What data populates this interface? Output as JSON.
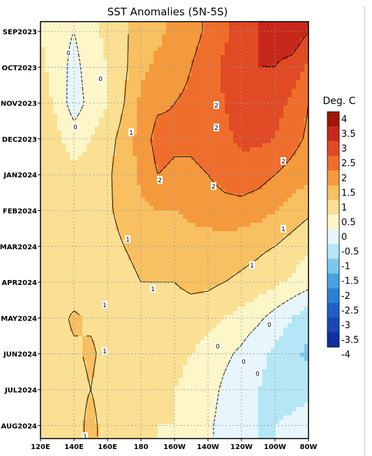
{
  "chart_data": {
    "type": "heatmap",
    "title": "SST Anomalies (5N-5S)",
    "xlabel": "",
    "ylabel": "",
    "x_ticks": [
      "120E",
      "140E",
      "160E",
      "180",
      "160W",
      "140W",
      "120W",
      "100W",
      "80W"
    ],
    "x_values": [
      120,
      140,
      160,
      180,
      200,
      220,
      240,
      260,
      280
    ],
    "xlim": [
      120,
      280
    ],
    "y_ticks": [
      "SEP2023",
      "OCT2023",
      "NOV2023",
      "DEC2023",
      "JAN2024",
      "FEB2024",
      "MAR2024",
      "APR2024",
      "MAY2024",
      "JUN2024",
      "JUL2024",
      "AUG2024"
    ],
    "grid": true,
    "colorbar": {
      "unit": "Deg. C",
      "labels": [
        "4",
        "3.5",
        "3",
        "2.5",
        "2",
        "1.5",
        "1",
        "0.5",
        "0",
        "-0.5",
        "-1",
        "-1.5",
        "-2",
        "-2.5",
        "-3",
        "-3.5",
        "-4"
      ],
      "colors": [
        "#a0140c",
        "#c8281a",
        "#e04a24",
        "#f06e2c",
        "#f59a3c",
        "#f8c060",
        "#fbe094",
        "#fdf6c8",
        "#e6f6fc",
        "#b4e6f6",
        "#7cc8ec",
        "#4aa2e0",
        "#2e80d4",
        "#2060c4",
        "#1848b0",
        "#1030a0"
      ]
    },
    "contour_labels": [
      "0",
      "0",
      "0",
      "1",
      "2",
      "2",
      "2",
      "2",
      "2",
      "1",
      "1",
      "1",
      "1",
      "1",
      "1",
      "1",
      "0",
      "0",
      "0",
      "0"
    ],
    "months": [
      "SEP2023",
      "OCT2023",
      "NOV2023",
      "DEC2023",
      "JAN2024",
      "FEB2024",
      "MAR2024",
      "APR2024",
      "MAY2024",
      "JUN2024",
      "JUL2024",
      "AUG2024"
    ],
    "longitudes": [
      120,
      130,
      140,
      150,
      160,
      170,
      180,
      190,
      200,
      210,
      220,
      230,
      240,
      250,
      260,
      270,
      280
    ],
    "values": [
      [
        0.5,
        0.2,
        0.0,
        0.4,
        0.6,
        0.9,
        1.3,
        1.4,
        1.6,
        1.8,
        2.1,
        2.4,
        2.7,
        3.0,
        3.2,
        3.4,
        3.0
      ],
      [
        0.6,
        0.3,
        -0.2,
        0.3,
        0.5,
        0.9,
        1.4,
        1.6,
        1.8,
        2.0,
        2.3,
        2.6,
        2.9,
        3.0,
        3.0,
        2.8,
        2.4
      ],
      [
        0.7,
        0.4,
        -0.3,
        0.2,
        0.5,
        1.0,
        1.6,
        1.9,
        2.0,
        2.1,
        2.3,
        2.5,
        2.8,
        2.8,
        2.7,
        2.4,
        2.0
      ],
      [
        0.8,
        0.6,
        0.3,
        0.5,
        0.8,
        1.2,
        1.7,
        2.2,
        2.1,
        2.1,
        2.2,
        2.4,
        2.6,
        2.6,
        2.5,
        2.2,
        1.9
      ],
      [
        0.8,
        0.7,
        0.6,
        0.7,
        0.9,
        1.3,
        1.6,
        2.0,
        1.9,
        1.9,
        2.0,
        2.2,
        2.3,
        2.2,
        2.0,
        1.8,
        1.6
      ],
      [
        0.8,
        0.7,
        0.6,
        0.7,
        0.9,
        1.2,
        1.4,
        1.5,
        1.5,
        1.6,
        1.7,
        1.8,
        1.8,
        1.7,
        1.5,
        1.3,
        1.1
      ],
      [
        0.8,
        0.7,
        0.6,
        0.7,
        0.8,
        1.0,
        1.1,
        1.2,
        1.2,
        1.3,
        1.3,
        1.3,
        1.2,
        1.1,
        1.0,
        0.8,
        0.6
      ],
      [
        0.7,
        0.7,
        0.6,
        0.7,
        0.8,
        0.9,
        1.0,
        1.0,
        1.0,
        1.1,
        1.1,
        1.0,
        0.9,
        0.8,
        0.6,
        0.4,
        0.2
      ],
      [
        0.7,
        0.8,
        1.1,
        0.9,
        0.8,
        0.8,
        0.8,
        0.8,
        0.8,
        0.8,
        0.7,
        0.5,
        0.3,
        0.1,
        -0.2,
        -0.5,
        -0.8
      ],
      [
        0.7,
        0.8,
        0.9,
        1.1,
        0.8,
        0.7,
        0.7,
        0.7,
        0.6,
        0.5,
        0.3,
        0.1,
        -0.1,
        -0.4,
        -0.6,
        -0.9,
        -1.1
      ],
      [
        0.6,
        0.7,
        0.8,
        1.0,
        0.7,
        0.6,
        0.6,
        0.6,
        0.5,
        0.4,
        0.2,
        -0.1,
        -0.3,
        -0.5,
        -0.6,
        -0.7,
        -0.6
      ],
      [
        0.6,
        0.7,
        0.7,
        1.2,
        0.7,
        0.6,
        0.6,
        0.5,
        0.5,
        0.3,
        0.1,
        -0.2,
        -0.4,
        -0.5,
        -0.5,
        -0.4,
        -0.3
      ]
    ]
  }
}
